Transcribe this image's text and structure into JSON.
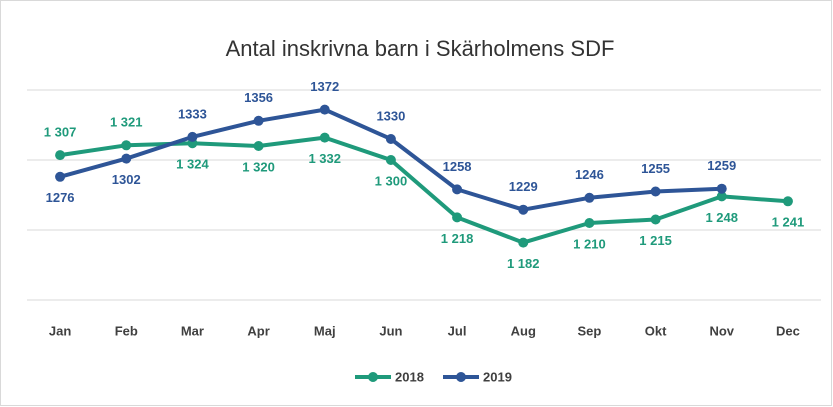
{
  "chart_data": {
    "type": "line",
    "title": "Antal inskrivna barn i Skärholmens SDF",
    "categories": [
      "Jan",
      "Feb",
      "Mar",
      "Apr",
      "Maj",
      "Jun",
      "Jul",
      "Aug",
      "Sep",
      "Okt",
      "Nov",
      "Dec"
    ],
    "series": [
      {
        "name": "2018",
        "color": "#1f9a7b",
        "values": [
          1307,
          1321,
          1324,
          1320,
          1332,
          1300,
          1218,
          1182,
          1210,
          1215,
          1248,
          1241
        ],
        "value_labels": [
          "1 307",
          "1 321",
          "1 324",
          "1 320",
          "1 332",
          "1 300",
          "1 218",
          "1 182",
          "1 210",
          "1 215",
          "1 248",
          "1 241"
        ]
      },
      {
        "name": "2019",
        "color": "#2e5597",
        "values": [
          1276,
          1302,
          1333,
          1356,
          1372,
          1330,
          1258,
          1229,
          1246,
          1255,
          1259,
          null
        ]
      }
    ],
    "ylim": [
      1100,
      1400
    ],
    "yticks": [
      1100,
      1200,
      1300,
      1400
    ],
    "grid": true,
    "legend": "bottom"
  }
}
